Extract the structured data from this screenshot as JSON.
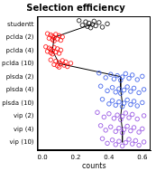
{
  "chart_data": {
    "type": "scatter",
    "title": "Selection efficiency",
    "x_label": "counts",
    "categories": [
      "studentt",
      "pclda (2)",
      "pclda (4)",
      "pclda (10)",
      "plsda (2)",
      "plsda (4)",
      "plsda (10)",
      "vip (2)",
      "vip (4)",
      "vip (10)"
    ],
    "colors": [
      "#000000",
      "#ff0000",
      "#ff0000",
      "#ff0000",
      "#2b50e8",
      "#2b50e8",
      "#2b50e8",
      "#8a40e0",
      "#8a40e0",
      "#8a40e0"
    ],
    "values": [
      [
        0.22,
        0.24,
        0.26,
        0.27,
        0.28,
        0.29,
        0.3,
        0.31,
        0.32,
        0.34,
        0.36,
        0.39
      ],
      [
        0.03,
        0.04,
        0.05,
        0.06,
        0.06,
        0.07,
        0.07,
        0.08,
        0.09,
        0.1,
        0.11,
        0.12
      ],
      [
        0.02,
        0.03,
        0.04,
        0.05,
        0.05,
        0.06,
        0.06,
        0.07,
        0.08,
        0.09,
        0.1,
        0.11
      ],
      [
        0.05,
        0.07,
        0.08,
        0.09,
        0.1,
        0.1,
        0.11,
        0.12,
        0.13,
        0.14,
        0.15,
        0.17
      ],
      [
        0.34,
        0.38,
        0.41,
        0.43,
        0.45,
        0.47,
        0.48,
        0.5,
        0.52,
        0.54,
        0.57,
        0.6
      ],
      [
        0.35,
        0.39,
        0.42,
        0.44,
        0.46,
        0.47,
        0.49,
        0.51,
        0.53,
        0.55,
        0.58,
        0.61
      ],
      [
        0.36,
        0.4,
        0.42,
        0.44,
        0.46,
        0.48,
        0.49,
        0.51,
        0.53,
        0.55,
        0.57,
        0.6
      ],
      [
        0.33,
        0.37,
        0.4,
        0.43,
        0.45,
        0.47,
        0.48,
        0.5,
        0.52,
        0.54,
        0.57,
        0.61
      ],
      [
        0.35,
        0.38,
        0.41,
        0.44,
        0.46,
        0.48,
        0.49,
        0.51,
        0.53,
        0.55,
        0.58,
        0.6
      ],
      [
        0.36,
        0.39,
        0.42,
        0.44,
        0.46,
        0.48,
        0.5,
        0.52,
        0.54,
        0.56,
        0.58,
        0.61
      ]
    ],
    "medians": [
      0.3,
      0.07,
      0.06,
      0.1,
      0.47,
      0.47,
      0.48,
      0.47,
      0.48,
      0.48
    ],
    "xlim": [
      -0.03,
      0.65
    ],
    "xticks": [
      {
        "value": 0,
        "label": "0.0"
      },
      {
        "value": 0.2,
        "label": "0.2"
      },
      {
        "value": 0.4,
        "label": "0.4"
      },
      {
        "value": 0.6,
        "label": "0.6"
      }
    ],
    "marker": "open_circle",
    "grid": false
  }
}
